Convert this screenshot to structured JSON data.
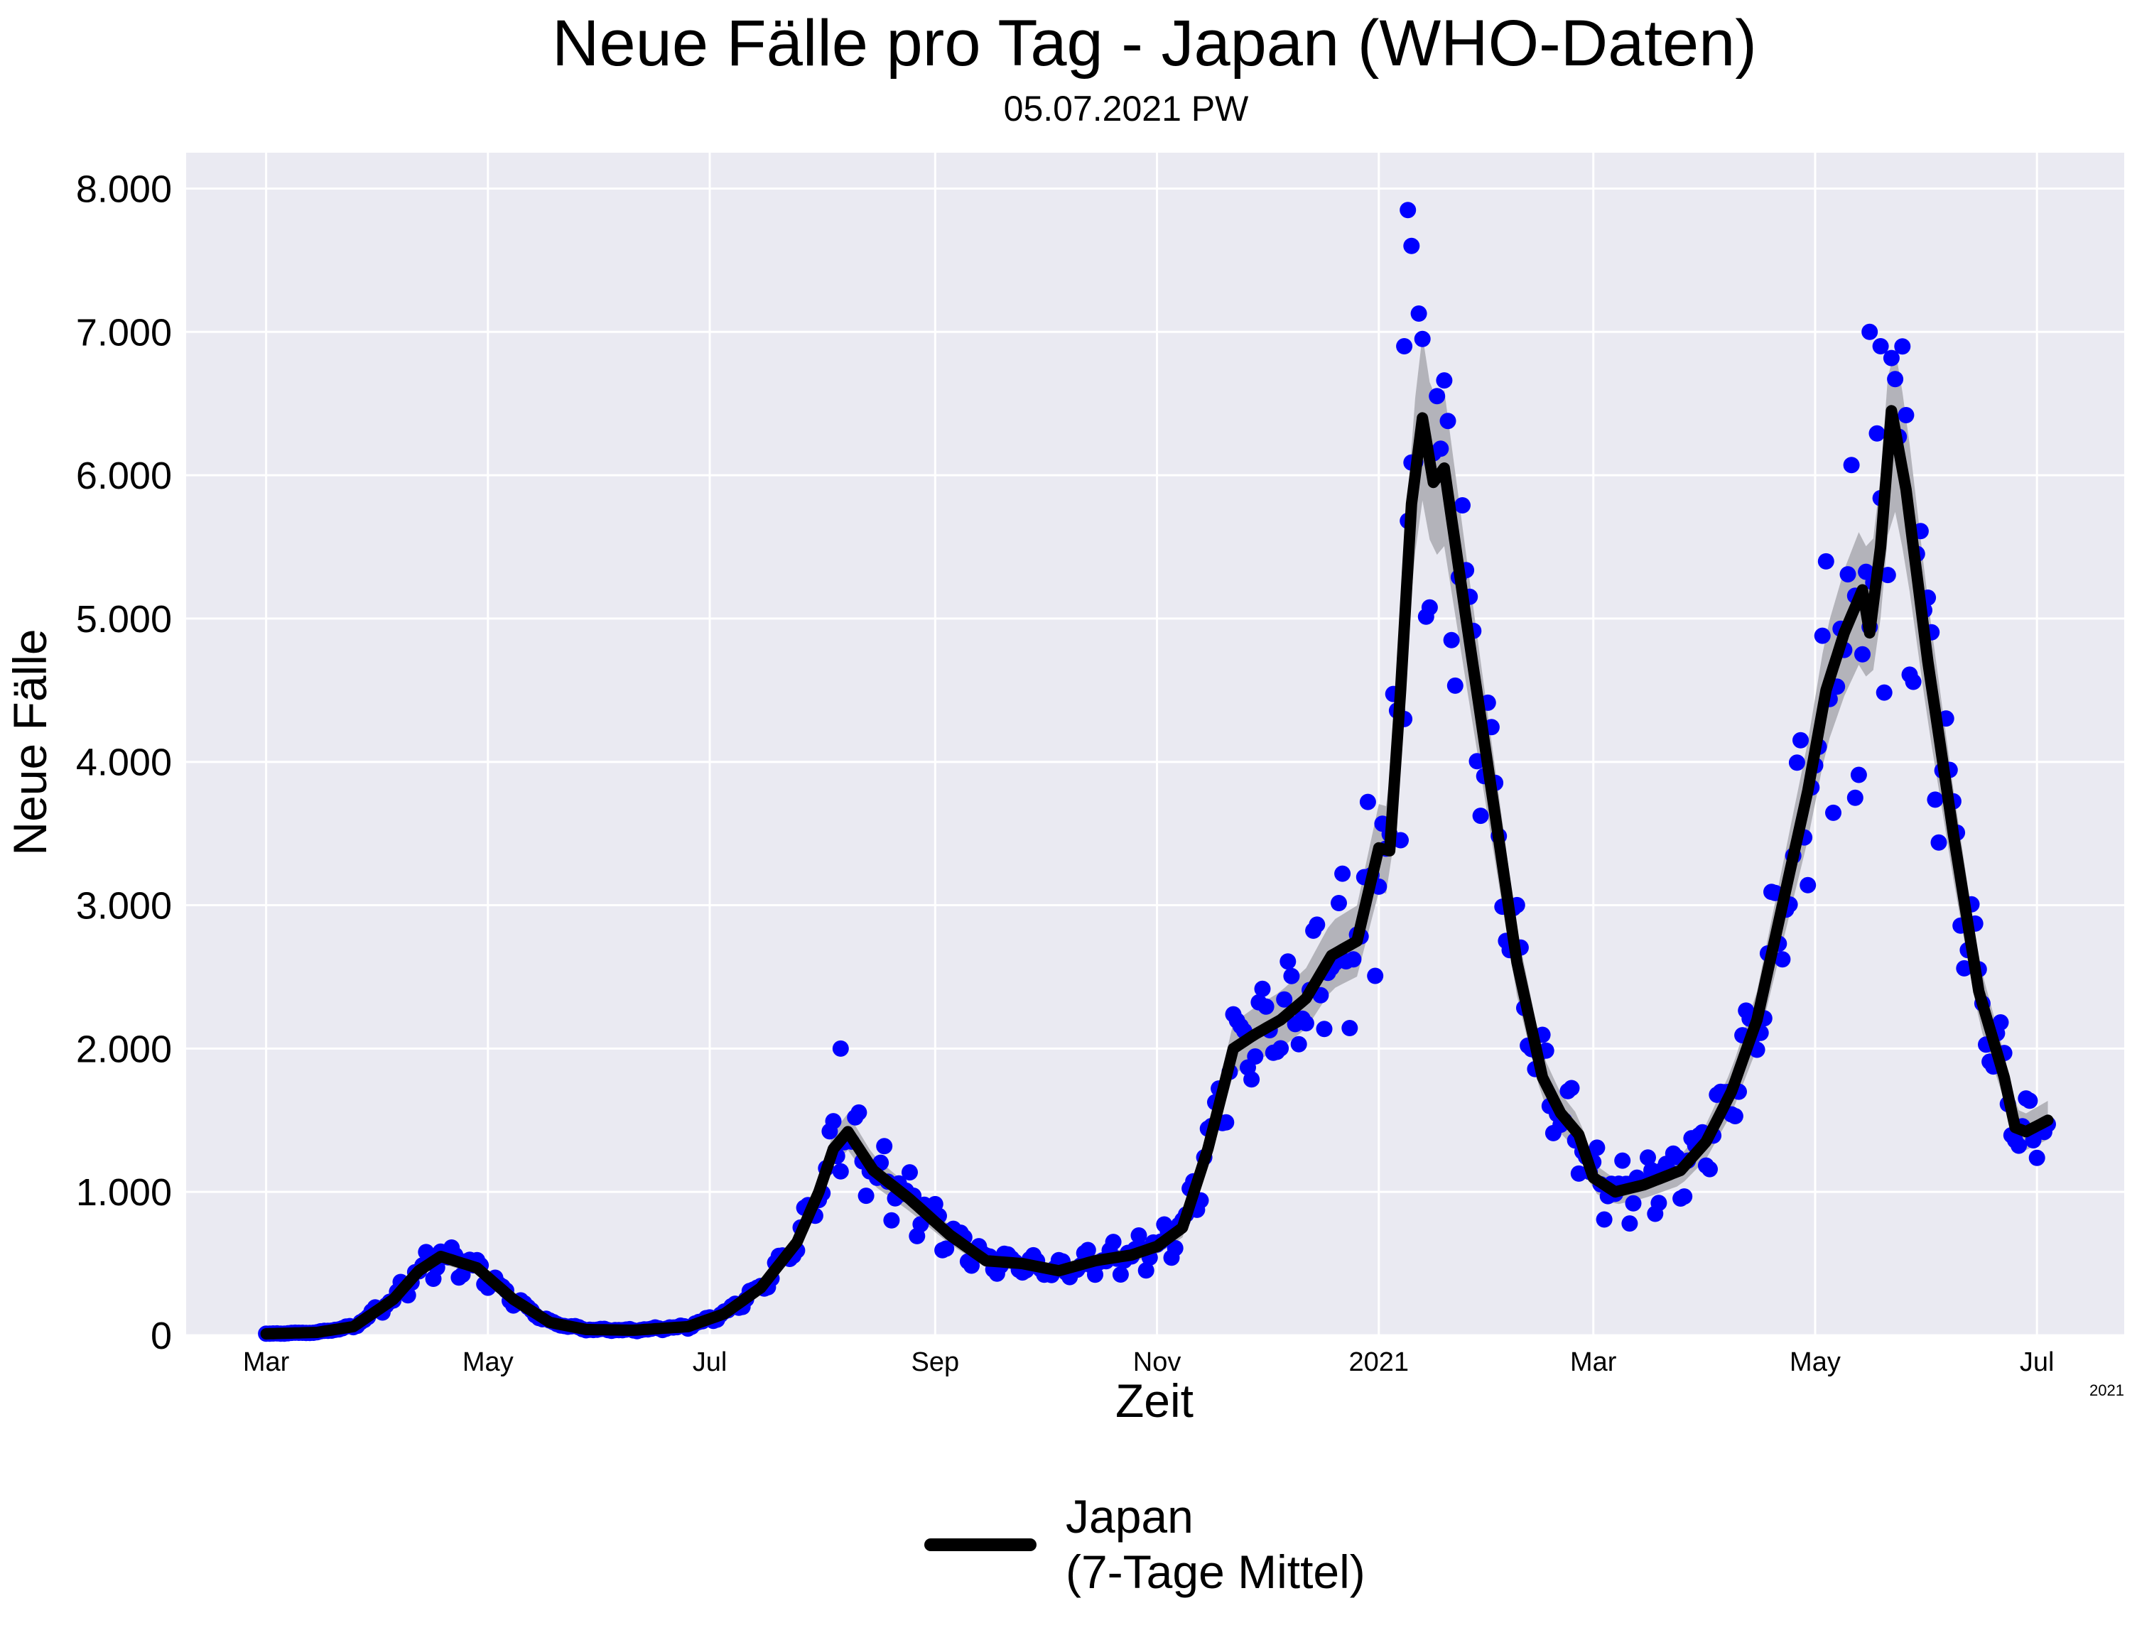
{
  "chart_data": {
    "type": "line",
    "title": "Neue Fälle pro Tag - Japan (WHO-Daten)",
    "subtitle": "05.07.2021 PW",
    "xlabel": "Zeit",
    "ylabel": "Neue Fälle",
    "corner_label": "2021",
    "x_ticks": [
      {
        "label": "Mar",
        "date": "2020-03-01"
      },
      {
        "label": "May",
        "date": "2020-05-01"
      },
      {
        "label": "Jul",
        "date": "2020-07-01"
      },
      {
        "label": "Sep",
        "date": "2020-09-01"
      },
      {
        "label": "Nov",
        "date": "2020-11-01"
      },
      {
        "label": "2021",
        "date": "2021-01-01"
      },
      {
        "label": "Mar",
        "date": "2021-03-01"
      },
      {
        "label": "May",
        "date": "2021-05-01"
      },
      {
        "label": "Jul",
        "date": "2021-07-01"
      }
    ],
    "y_ticks": [
      {
        "label": "0",
        "value": 0
      },
      {
        "label": "1.000",
        "value": 1000
      },
      {
        "label": "2.000",
        "value": 2000
      },
      {
        "label": "3.000",
        "value": 3000
      },
      {
        "label": "4.000",
        "value": 4000
      },
      {
        "label": "5.000",
        "value": 5000
      },
      {
        "label": "6.000",
        "value": 6000
      },
      {
        "label": "7.000",
        "value": 7000
      },
      {
        "label": "8.000",
        "value": 8000
      }
    ],
    "xlim": [
      "2020-02-08",
      "2021-07-25"
    ],
    "ylim": [
      0,
      8250
    ],
    "grid": true,
    "legend_placement": "bottom-center",
    "colors": {
      "background": "#eaeaf2",
      "grid": "#ffffff",
      "points": "#0000ff",
      "line": "#000000",
      "band": "#b0b0b6"
    },
    "series": [
      {
        "name": "Japan\n(7-Tage Mittel)",
        "role": "7-day-mean-line",
        "anchors": [
          [
            "2020-03-01",
            10
          ],
          [
            "2020-03-15",
            20
          ],
          [
            "2020-03-25",
            60
          ],
          [
            "2020-04-05",
            250
          ],
          [
            "2020-04-12",
            450
          ],
          [
            "2020-04-18",
            550
          ],
          [
            "2020-04-28",
            470
          ],
          [
            "2020-05-08",
            250
          ],
          [
            "2020-05-18",
            90
          ],
          [
            "2020-05-28",
            40
          ],
          [
            "2020-06-10",
            35
          ],
          [
            "2020-06-25",
            60
          ],
          [
            "2020-07-05",
            150
          ],
          [
            "2020-07-15",
            330
          ],
          [
            "2020-07-25",
            650
          ],
          [
            "2020-07-31",
            1000
          ],
          [
            "2020-08-04",
            1300
          ],
          [
            "2020-08-08",
            1420
          ],
          [
            "2020-08-15",
            1150
          ],
          [
            "2020-08-25",
            950
          ],
          [
            "2020-09-05",
            700
          ],
          [
            "2020-09-15",
            520
          ],
          [
            "2020-09-25",
            500
          ],
          [
            "2020-10-05",
            450
          ],
          [
            "2020-10-15",
            520
          ],
          [
            "2020-10-25",
            560
          ],
          [
            "2020-11-01",
            620
          ],
          [
            "2020-11-08",
            750
          ],
          [
            "2020-11-15",
            1300
          ],
          [
            "2020-11-22",
            2000
          ],
          [
            "2020-11-28",
            2100
          ],
          [
            "2020-12-05",
            2200
          ],
          [
            "2020-12-12",
            2350
          ],
          [
            "2020-12-19",
            2650
          ],
          [
            "2020-12-26",
            2750
          ],
          [
            "2021-01-01",
            3400
          ],
          [
            "2021-01-04",
            3380
          ],
          [
            "2021-01-07",
            4500
          ],
          [
            "2021-01-10",
            5800
          ],
          [
            "2021-01-13",
            6400
          ],
          [
            "2021-01-16",
            5950
          ],
          [
            "2021-01-19",
            6050
          ],
          [
            "2021-01-25",
            5000
          ],
          [
            "2021-02-01",
            3800
          ],
          [
            "2021-02-08",
            2600
          ],
          [
            "2021-02-15",
            1800
          ],
          [
            "2021-02-20",
            1550
          ],
          [
            "2021-02-25",
            1400
          ],
          [
            "2021-03-01",
            1100
          ],
          [
            "2021-03-07",
            1000
          ],
          [
            "2021-03-15",
            1050
          ],
          [
            "2021-03-25",
            1150
          ],
          [
            "2021-04-01",
            1350
          ],
          [
            "2021-04-08",
            1700
          ],
          [
            "2021-04-15",
            2200
          ],
          [
            "2021-04-22",
            3000
          ],
          [
            "2021-04-29",
            3800
          ],
          [
            "2021-05-04",
            4500
          ],
          [
            "2021-05-09",
            4900
          ],
          [
            "2021-05-14",
            5200
          ],
          [
            "2021-05-16",
            4900
          ],
          [
            "2021-05-19",
            5500
          ],
          [
            "2021-05-22",
            6450
          ],
          [
            "2021-05-26",
            5900
          ],
          [
            "2021-06-01",
            4700
          ],
          [
            "2021-06-08",
            3500
          ],
          [
            "2021-06-15",
            2400
          ],
          [
            "2021-06-22",
            1800
          ],
          [
            "2021-06-25",
            1450
          ],
          [
            "2021-06-28",
            1420
          ],
          [
            "2021-07-04",
            1500
          ]
        ]
      },
      {
        "role": "daily-new-cases-points",
        "amplitude": 0.15,
        "spikes": [
          [
            "2020-08-06",
            2000
          ],
          [
            "2021-01-08",
            6900
          ],
          [
            "2021-01-09",
            7850
          ],
          [
            "2021-01-10",
            7600
          ],
          [
            "2021-05-16",
            7000
          ],
          [
            "2021-05-19",
            6900
          ],
          [
            "2021-05-12",
            3750
          ]
        ]
      }
    ]
  }
}
